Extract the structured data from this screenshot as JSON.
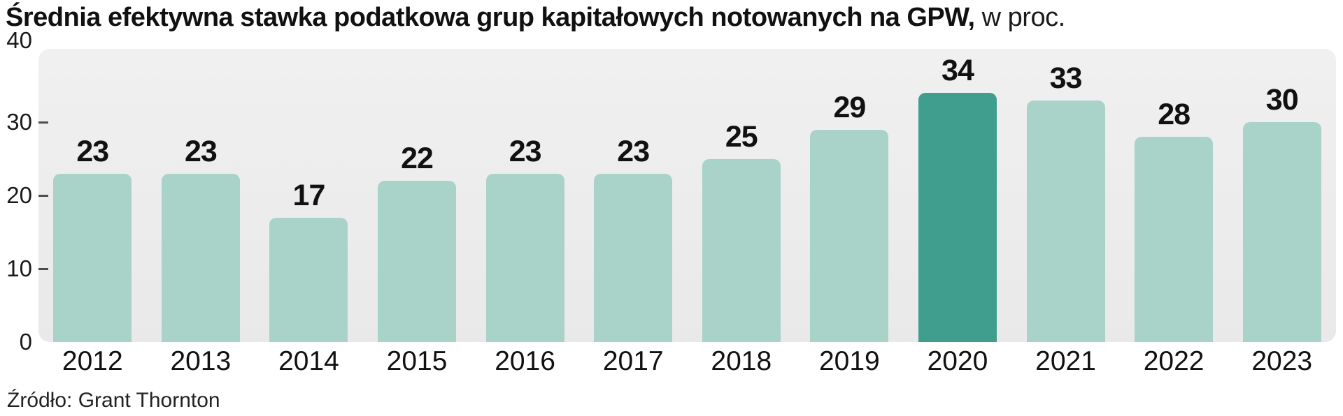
{
  "title": {
    "bold": "Średnia efektywna stawka podatkowa grup kapitałowych notowanych na GPW,",
    "normal": "w proc."
  },
  "source": "Źródło: Grant Thornton",
  "chart_data": {
    "type": "bar",
    "title": "Średnia efektywna stawka podatkowa grup kapitałowych notowanych na GPW, w proc.",
    "categories": [
      "2012",
      "2013",
      "2014",
      "2015",
      "2016",
      "2017",
      "2018",
      "2019",
      "2020",
      "2021",
      "2022",
      "2023"
    ],
    "values": [
      23,
      23,
      17,
      22,
      23,
      23,
      25,
      29,
      34,
      33,
      28,
      30
    ],
    "highlight_index": 8,
    "xlabel": "",
    "ylabel": "",
    "ylim": [
      0,
      40
    ],
    "yticks": [
      0,
      10,
      20,
      30,
      40
    ],
    "legend": "none",
    "grid": "left-ticks-only",
    "colors": {
      "bar": "#a9d2c9",
      "highlight": "#3f9e8e",
      "plot_bg": "#ededed",
      "tick": "#4d4d4d",
      "text": "#111111"
    }
  }
}
